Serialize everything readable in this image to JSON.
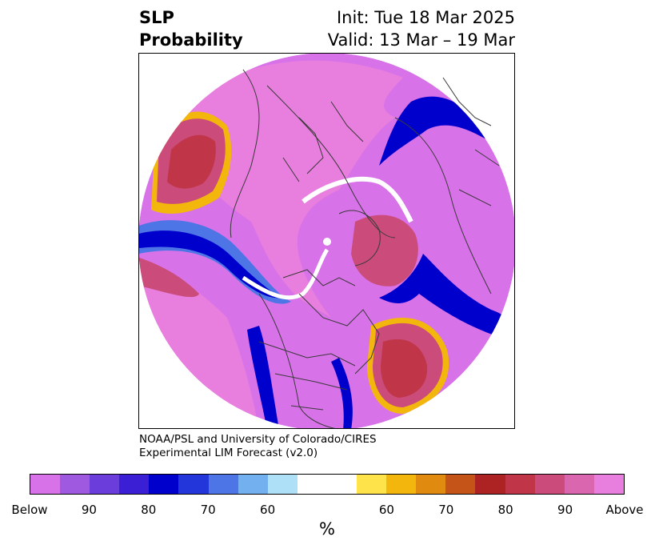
{
  "title": {
    "left_line1": "SLP",
    "left_line2": "Probability",
    "right_line1": "Init: Tue 18 Mar 2025",
    "right_line2": "Valid: 13 Mar – 19 Mar"
  },
  "credit": {
    "line1": "NOAA/PSL and University of Colorado/CIRES",
    "line2": "Experimental LIM Forecast (v2.0)"
  },
  "colorbar": {
    "unit": "%",
    "colors": [
      "#d872e8",
      "#9e59e0",
      "#6b3ddb",
      "#3b1fd4",
      "#0000cc",
      "#2336d9",
      "#4e75e6",
      "#72b0f0",
      "#aee0f8",
      "#ffffff",
      "#ffe34a",
      "#f3b60c",
      "#e08a0f",
      "#c45418",
      "#ad2222",
      "#c03548",
      "#cb4c7a",
      "#da66b0",
      "#e87fde"
    ],
    "tick_labels": [
      "Below",
      "90",
      "80",
      "70",
      "60",
      "60",
      "70",
      "80",
      "90",
      "Above"
    ]
  },
  "map_colors": {
    "above_strong": "#e87fde",
    "above_mid": "#cb4c7a",
    "above_weak": "#c03548",
    "neutral_warm": "#f3b60c",
    "below_strong": "#d872e8",
    "below_mid": "#0000cc",
    "below_weak": "#aee0f8",
    "coast": "#3a3a3a"
  }
}
